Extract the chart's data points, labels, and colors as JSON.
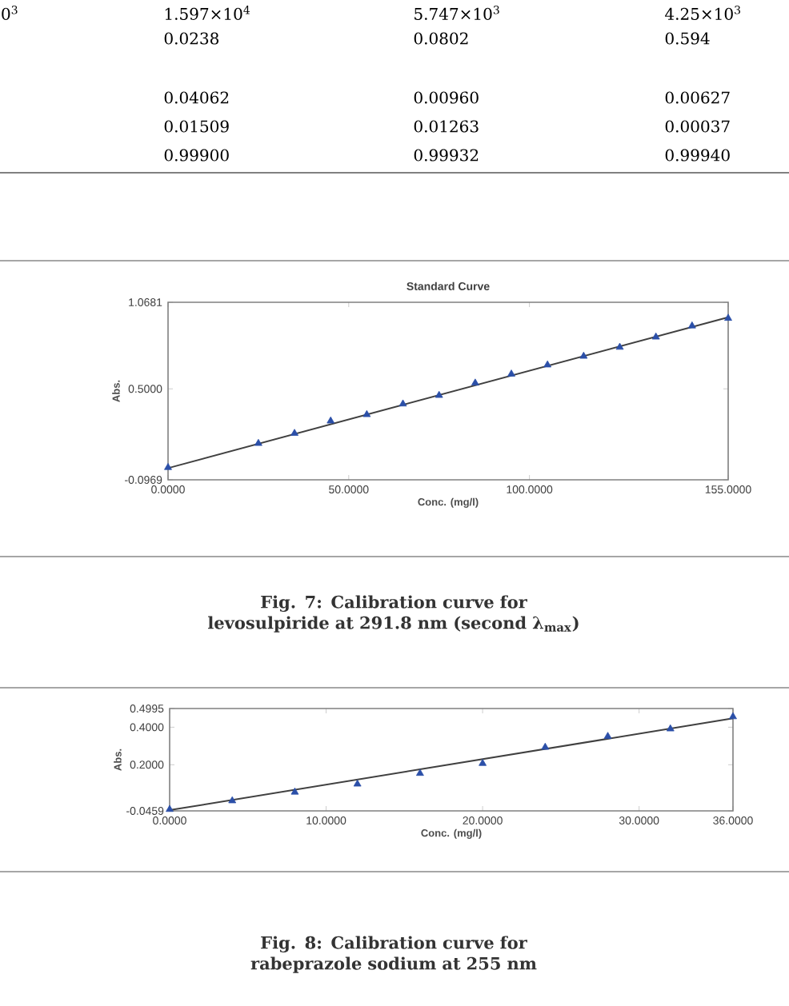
{
  "chart_data": [
    {
      "type": "other",
      "annotations": [
        "0$^{3}$",
        "1.597×10$^{4}$",
        "5.747×10$^{3}$",
        "4.25×10$^{3}$",
        "0.0238",
        "0.0802",
        "0.594",
        "0.04062",
        "0.00960",
        "0.00627",
        "0.01509",
        "0.01263",
        "0.00037",
        "0.99900",
        "0.99932",
        "0.99940"
      ]
    },
    {
      "type": "scatter",
      "title": "Standard Curve",
      "xlabel": "Conc. (mg/l)",
      "ylabel": "Abs.",
      "marker": "triangle",
      "annotations": [
        "Fig. 7: Calibration curve for levosulpiride at 291.8 nm (second λ$_{max}$)"
      ],
      "xlim": [
        0,
        155
      ],
      "xticks": [
        {
          "value": 0,
          "label": "0.0000"
        },
        {
          "value": 50,
          "label": "50.0000"
        },
        {
          "value": 100,
          "label": "100.0000"
        },
        {
          "value": 155,
          "label": "155.0000"
        }
      ],
      "ylim": [
        -0.0969,
        1.0681
      ],
      "yticks": [
        {
          "value": -0.0969,
          "label": "-0.0969"
        },
        {
          "value": 0.5,
          "label": "0.5000"
        },
        {
          "value": 1.0681,
          "label": "1.0681"
        }
      ],
      "series": [
        {
          "type": "line",
          "marker": "none",
          "color": "#404040",
          "x": [
            0,
            155
          ],
          "values": [
            -0.02,
            0.97
          ]
        },
        {
          "type": "scatter",
          "color": "#2b4fa8",
          "x": [
            0,
            25,
            35,
            45,
            55,
            65,
            75,
            85,
            95,
            105,
            115,
            125,
            135,
            145,
            155
          ],
          "values": [
            -0.016,
            0.142,
            0.208,
            0.289,
            0.331,
            0.401,
            0.457,
            0.538,
            0.597,
            0.657,
            0.714,
            0.773,
            0.84,
            0.913,
            0.963
          ]
        }
      ]
    },
    {
      "type": "scatter",
      "xlabel": "Conc. (mg/l)",
      "ylabel": "Abs.",
      "marker": "triangle",
      "annotations": [
        "Fig. 8: Calibration curve for rabeprazole sodium at 255 nm"
      ],
      "xlim": [
        0,
        36
      ],
      "xticks": [
        {
          "value": 0,
          "label": "0.0000"
        },
        {
          "value": 10,
          "label": "10.0000"
        },
        {
          "value": 20,
          "label": "20.0000"
        },
        {
          "value": 30,
          "label": "30.0000"
        },
        {
          "value": 36,
          "label": "36.0000"
        }
      ],
      "ylim": [
        -0.0459,
        0.4995
      ],
      "yticks": [
        {
          "value": -0.0459,
          "label": "-0.0459"
        },
        {
          "value": 0.2,
          "label": "0.2000"
        },
        {
          "value": 0.4,
          "label": "0.4000"
        },
        {
          "value": 0.4995,
          "label": "0.4995"
        }
      ],
      "series": [
        {
          "type": "line",
          "marker": "none",
          "color": "#404040",
          "x": [
            0,
            36
          ],
          "values": [
            -0.042,
            0.447
          ]
        },
        {
          "type": "scatter",
          "color": "#2b4fa8",
          "x": [
            0,
            4,
            8,
            12,
            16,
            20,
            24,
            28,
            32,
            36
          ],
          "values": [
            -0.038,
            0.008,
            0.054,
            0.097,
            0.154,
            0.207,
            0.293,
            0.351,
            0.391,
            0.456
          ]
        }
      ]
    }
  ]
}
